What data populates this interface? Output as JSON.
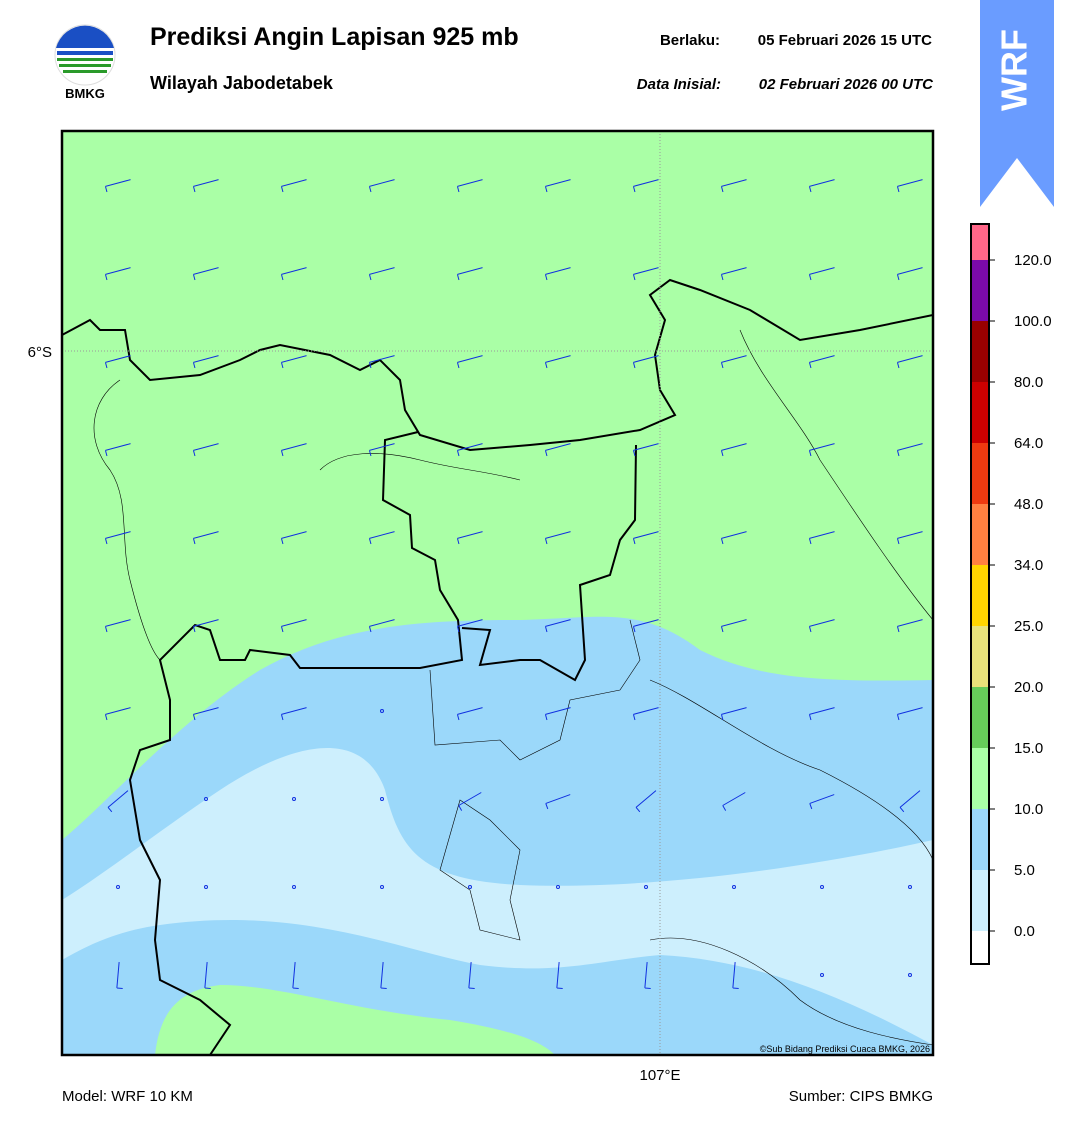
{
  "header": {
    "logo_text": "BMKG",
    "title": "Prediksi Angin Lapisan 925 mb",
    "subtitle": "Wilayah Jabodetabek",
    "valid_label": "Berlaku:",
    "valid_time": "05 Februari 2026 15 UTC",
    "init_label": "Data Inisial:",
    "init_time": "02 Februari 2026 00 UTC",
    "badge": "WRF"
  },
  "map": {
    "lat_label": "6°S",
    "lon_label": "107°E",
    "copyright": "©Sub Bidang Prediksi Cuaca BMKG, 2026"
  },
  "colorbar": {
    "labels": [
      "0.0",
      "5.0",
      "10.0",
      "15.0",
      "20.0",
      "25.0",
      "34.0",
      "48.0",
      "64.0",
      "80.0",
      "100.0",
      "120.0"
    ],
    "colors": [
      "#ffffff",
      "#cdeffd",
      "#9bd8fa",
      "#aaffa6",
      "#66cc5a",
      "#e8e27a",
      "#ffd400",
      "#ff8040",
      "#ee3a10",
      "#cc0000",
      "#990000",
      "#7b0aa8",
      "#ff6688"
    ]
  },
  "footer": {
    "model": "Model: WRF 10 KM",
    "source": "Sumber: CIPS BMKG"
  }
}
